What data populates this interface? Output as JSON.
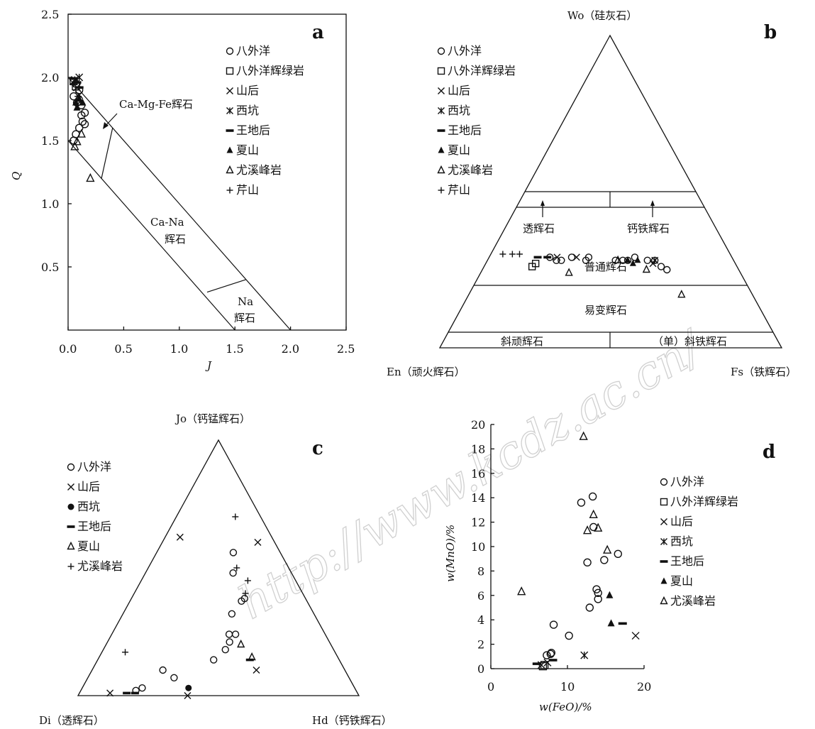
{
  "watermark": "http://www.kcdz.ac.cn/",
  "panels": {
    "a": {
      "letter": "a",
      "xlabel": "J",
      "ylabel": "Q",
      "x_ticks": [
        "0.0",
        "0.5",
        "1.0",
        "1.5",
        "2.0",
        "2.5"
      ],
      "y_ticks": [
        "0.5",
        "1.0",
        "1.5",
        "2.0",
        "2.5"
      ],
      "regions": {
        "camgfe": "Ca-Mg-Fe辉石",
        "cana_1": "Ca-Na",
        "cana_2": "辉石",
        "na_1": "Na",
        "na_2": "辉石"
      },
      "legend": [
        {
          "sym": "circle",
          "label": "八外洋"
        },
        {
          "sym": "square",
          "label": "八外洋辉绿岩"
        },
        {
          "sym": "x",
          "label": "山后"
        },
        {
          "sym": "star",
          "label": "西坑"
        },
        {
          "sym": "dash",
          "label": "王地后"
        },
        {
          "sym": "tri-filled",
          "label": "夏山"
        },
        {
          "sym": "tri-open",
          "label": "尤溪峰岩"
        },
        {
          "sym": "plus",
          "label": "芹山"
        }
      ]
    },
    "b": {
      "letter": "b",
      "apex_top": "Wo（硅灰石）",
      "apex_left": "En（顽火辉石）",
      "apex_right": "Fs（铁辉石）",
      "fields": {
        "diopside": "透辉石",
        "hedenbergite": "钙铁辉石",
        "augite": "普通辉石",
        "pigeonite": "易变辉石",
        "clinoenstatite": "斜顽辉石",
        "clinoferrosilite": "（单）斜铁辉石"
      },
      "legend": [
        {
          "sym": "circle",
          "label": "八外洋"
        },
        {
          "sym": "square",
          "label": "八外洋辉绿岩"
        },
        {
          "sym": "x",
          "label": "山后"
        },
        {
          "sym": "star",
          "label": "西坑"
        },
        {
          "sym": "dash",
          "label": "王地后"
        },
        {
          "sym": "tri-filled",
          "label": "夏山"
        },
        {
          "sym": "tri-open",
          "label": "尤溪峰岩"
        },
        {
          "sym": "plus",
          "label": "芹山"
        }
      ]
    },
    "c": {
      "letter": "c",
      "apex_top": "Jo（钙锰辉石）",
      "apex_left": "Di（透辉石）",
      "apex_right": "Hd（钙铁辉石）",
      "legend": [
        {
          "sym": "circle",
          "label": "八外洋"
        },
        {
          "sym": "x",
          "label": "山后"
        },
        {
          "sym": "dot",
          "label": "西坑"
        },
        {
          "sym": "dash",
          "label": "王地后"
        },
        {
          "sym": "tri-open",
          "label": "夏山"
        },
        {
          "sym": "plus",
          "label": "尤溪峰岩"
        }
      ]
    },
    "d": {
      "letter": "d",
      "xlabel": "w(FeO)/%",
      "ylabel": "w(MnO)/%",
      "x_ticks": [
        "0",
        "10",
        "20"
      ],
      "y_ticks": [
        "0",
        "2",
        "4",
        "6",
        "8",
        "10",
        "12",
        "14",
        "16",
        "18",
        "20"
      ],
      "legend": [
        {
          "sym": "circle",
          "label": "八外洋"
        },
        {
          "sym": "square",
          "label": "八外洋辉绿岩"
        },
        {
          "sym": "x",
          "label": "山后"
        },
        {
          "sym": "star",
          "label": "西坑"
        },
        {
          "sym": "dash",
          "label": "王地后"
        },
        {
          "sym": "tri-filled",
          "label": "夏山"
        },
        {
          "sym": "tri-open",
          "label": "尤溪峰岩"
        }
      ]
    }
  },
  "chart_data": [
    {
      "panel": "a",
      "type": "scatter",
      "xlim": [
        0,
        2.5
      ],
      "ylim": [
        0,
        2.5
      ],
      "series": [
        {
          "name": "八外洋",
          "symbol": "circle",
          "points": [
            [
              0.05,
              1.5
            ],
            [
              0.07,
              1.55
            ],
            [
              0.1,
              1.6
            ],
            [
              0.13,
              1.65
            ],
            [
              0.15,
              1.63
            ],
            [
              0.12,
              1.7
            ],
            [
              0.15,
              1.72
            ],
            [
              0.08,
              1.8
            ],
            [
              0.05,
              1.85
            ],
            [
              0.1,
              1.9
            ],
            [
              0.07,
              1.95
            ],
            [
              0.12,
              1.78
            ]
          ]
        },
        {
          "name": "八外洋辉绿岩",
          "symbol": "square",
          "points": [
            [
              0.05,
              1.97
            ],
            [
              0.07,
              1.93
            ]
          ]
        },
        {
          "name": "山后",
          "symbol": "x",
          "points": [
            [
              0.08,
              1.92
            ],
            [
              0.1,
              1.86
            ]
          ]
        },
        {
          "name": "西坑",
          "symbol": "star",
          "points": [
            [
              0.06,
              1.98
            ],
            [
              0.1,
              2.0
            ]
          ]
        },
        {
          "name": "王地后",
          "symbol": "dash",
          "points": [
            [
              0.05,
              1.99
            ],
            [
              0.08,
              1.96
            ],
            [
              0.1,
              1.92
            ]
          ]
        },
        {
          "name": "夏山",
          "symbol": "tri-filled",
          "points": [
            [
              0.07,
              1.8
            ],
            [
              0.1,
              1.83
            ],
            [
              0.13,
              1.8
            ],
            [
              0.08,
              1.76
            ]
          ]
        },
        {
          "name": "尤溪峰岩",
          "symbol": "tri-open",
          "points": [
            [
              0.06,
              1.45
            ],
            [
              0.08,
              1.49
            ],
            [
              0.2,
              1.2
            ],
            [
              0.12,
              1.55
            ]
          ]
        },
        {
          "name": "芹山",
          "symbol": "plus",
          "points": [
            [
              0.05,
              1.95
            ],
            [
              0.07,
              1.9
            ],
            [
              0.09,
              1.85
            ]
          ]
        }
      ]
    },
    {
      "panel": "b",
      "type": "scatter",
      "series": [
        {
          "name": "八外洋",
          "symbol": "circle",
          "points": [
            [
              0.25,
              0.29
            ],
            [
              0.28,
              0.28
            ],
            [
              0.3,
              0.28
            ],
            [
              0.34,
              0.29
            ],
            [
              0.41,
              0.29
            ],
            [
              0.4,
              0.28
            ],
            [
              0.52,
              0.28
            ],
            [
              0.55,
              0.28
            ],
            [
              0.6,
              0.29
            ],
            [
              0.57,
              0.28
            ],
            [
              0.65,
              0.28
            ],
            [
              0.68,
              0.28
            ],
            [
              0.7,
              0.26
            ],
            [
              0.72,
              0.25
            ]
          ]
        },
        {
          "name": "八外洋辉绿岩",
          "symbol": "square",
          "points": [
            [
              0.19,
              0.26
            ],
            [
              0.2,
              0.27
            ]
          ]
        },
        {
          "name": "山后",
          "symbol": "x",
          "points": [
            [
              0.28,
              0.29
            ],
            [
              0.36,
              0.29
            ],
            [
              0.67,
              0.27
            ]
          ]
        },
        {
          "name": "西坑",
          "symbol": "star",
          "points": [
            [
              0.68,
              0.28
            ]
          ]
        },
        {
          "name": "王地后",
          "symbol": "dash",
          "points": [
            [
              0.2,
              0.29
            ],
            [
              0.24,
              0.29
            ]
          ]
        },
        {
          "name": "夏山",
          "symbol": "tri-filled",
          "points": [
            [
              0.57,
              0.28
            ],
            [
              0.59,
              0.27
            ],
            [
              0.61,
              0.28
            ]
          ]
        },
        {
          "name": "尤溪峰岩",
          "symbol": "tri-open",
          "points": [
            [
              0.34,
              0.24
            ],
            [
              0.53,
              0.28
            ],
            [
              0.64,
              0.25
            ],
            [
              0.75,
              0.17
            ]
          ]
        },
        {
          "name": "芹山",
          "symbol": "plus",
          "points": [
            [
              0.05,
              0.3
            ],
            [
              0.09,
              0.3
            ],
            [
              0.12,
              0.3
            ]
          ]
        }
      ]
    },
    {
      "panel": "c",
      "type": "scatter",
      "series": [
        {
          "name": "八外洋",
          "symbol": "circle",
          "points": [
            [
              0.2,
              0.02
            ],
            [
              0.22,
              0.03
            ],
            [
              0.28,
              0.1
            ],
            [
              0.33,
              0.07
            ],
            [
              0.48,
              0.14
            ],
            [
              0.53,
              0.18
            ],
            [
              0.55,
              0.21
            ],
            [
              0.57,
              0.32
            ],
            [
              0.6,
              0.48
            ],
            [
              0.62,
              0.56
            ],
            [
              0.63,
              0.37
            ],
            [
              0.65,
              0.38
            ],
            [
              0.55,
              0.24
            ],
            [
              0.58,
              0.24
            ]
          ]
        },
        {
          "name": "山后",
          "symbol": "x",
          "points": [
            [
              0.11,
              0.01
            ],
            [
              0.14,
              0.62
            ],
            [
              0.39,
              0.0
            ],
            [
              0.65,
              0.1
            ],
            [
              0.85,
              0.6
            ]
          ]
        },
        {
          "name": "西坑",
          "symbol": "dot",
          "points": [
            [
              0.39,
              0.03
            ]
          ]
        },
        {
          "name": "王地后",
          "symbol": "dash",
          "points": [
            [
              0.17,
              0.01
            ],
            [
              0.2,
              0.01
            ],
            [
              0.63,
              0.14
            ]
          ]
        },
        {
          "name": "夏山",
          "symbol": "tri-open",
          "points": [
            [
              0.6,
              0.2
            ],
            [
              0.64,
              0.15
            ]
          ]
        },
        {
          "name": "尤溪峰岩",
          "symbol": "plus",
          "points": [
            [
              0.1,
              0.17
            ],
            [
              0.63,
              0.5
            ],
            [
              0.66,
              0.4
            ],
            [
              0.69,
              0.45
            ],
            [
              0.7,
              0.7
            ]
          ]
        }
      ]
    },
    {
      "panel": "d",
      "type": "scatter",
      "xlim": [
        0,
        20
      ],
      "ylim": [
        0,
        20
      ],
      "series": [
        {
          "name": "八外洋",
          "symbol": "circle",
          "points": [
            [
              7.3,
              1.1
            ],
            [
              7.8,
              1.2
            ],
            [
              8.2,
              3.6
            ],
            [
              10.2,
              2.7
            ],
            [
              11.8,
              13.6
            ],
            [
              12.6,
              8.7
            ],
            [
              12.9,
              5.0
            ],
            [
              13.3,
              14.1
            ],
            [
              13.4,
              11.6
            ],
            [
              13.8,
              6.5
            ],
            [
              14.0,
              6.2
            ],
            [
              14.0,
              5.7
            ],
            [
              14.8,
              8.9
            ],
            [
              16.6,
              9.4
            ],
            [
              7.9,
              1.3
            ]
          ]
        },
        {
          "name": "八外洋辉绿岩",
          "symbol": "square",
          "points": [
            [
              6.8,
              0.2
            ],
            [
              7.0,
              0.3
            ]
          ]
        },
        {
          "name": "山后",
          "symbol": "x",
          "points": [
            [
              6.6,
              0.3
            ],
            [
              7.4,
              0.5
            ],
            [
              18.9,
              2.7
            ]
          ]
        },
        {
          "name": "西坑",
          "symbol": "star",
          "points": [
            [
              12.2,
              1.1
            ]
          ]
        },
        {
          "name": "王地后",
          "symbol": "dash",
          "points": [
            [
              6.0,
              0.4
            ],
            [
              8.1,
              0.7
            ],
            [
              17.2,
              3.7
            ]
          ]
        },
        {
          "name": "夏山",
          "symbol": "tri-filled",
          "points": [
            [
              15.5,
              6.0
            ],
            [
              15.7,
              3.7
            ]
          ]
        },
        {
          "name": "尤溪峰岩",
          "symbol": "tri-open",
          "points": [
            [
              4.0,
              6.3
            ],
            [
              12.1,
              19.0
            ],
            [
              12.6,
              11.3
            ],
            [
              13.4,
              12.6
            ],
            [
              14.0,
              11.5
            ],
            [
              15.2,
              9.7
            ]
          ]
        }
      ]
    }
  ]
}
